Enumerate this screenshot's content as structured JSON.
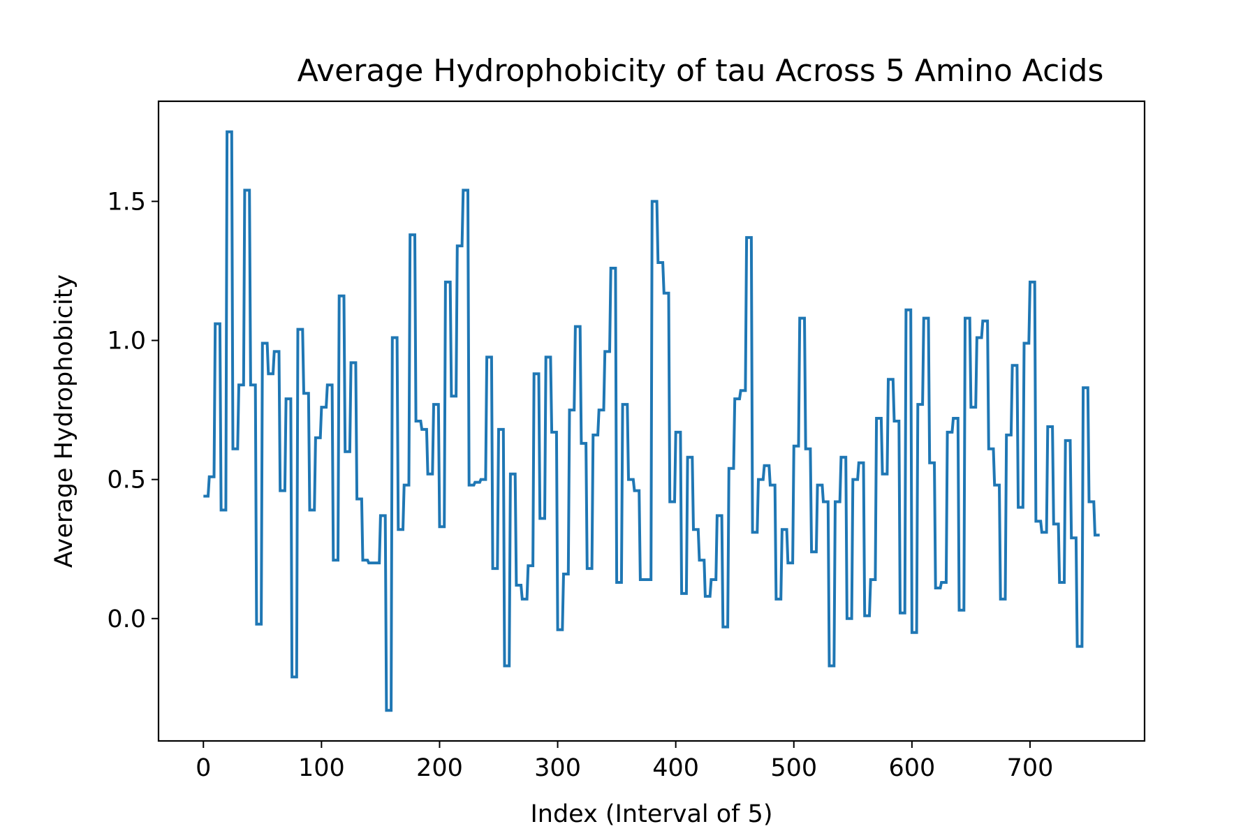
{
  "chart_data": {
    "type": "line",
    "title": "Average Hydrophobicity of tau Across 5 Amino Acids",
    "xlabel": "Index (Interval of 5)",
    "ylabel": "Average Hydrophobicity",
    "xlim": [
      -38,
      797
    ],
    "ylim": [
      -0.44,
      1.86
    ],
    "xticks": [
      0,
      100,
      200,
      300,
      400,
      500,
      600,
      700
    ],
    "xtick_labels": [
      "0",
      "100",
      "200",
      "300",
      "400",
      "500",
      "600",
      "700"
    ],
    "yticks": [
      0.0,
      0.5,
      1.0,
      1.5
    ],
    "ytick_labels": [
      "0.0",
      "0.5",
      "1.0",
      "1.5"
    ],
    "grid": false,
    "line_color": "#1f77b4",
    "series": [
      {
        "step": 5,
        "x": [
          0,
          5,
          10,
          15,
          20,
          25,
          30,
          35,
          40,
          45,
          50,
          55,
          60,
          65,
          70,
          75,
          80,
          85,
          90,
          95,
          100,
          105,
          110,
          115,
          120,
          125,
          130,
          135,
          140,
          145,
          150,
          155,
          160,
          165,
          170,
          175,
          180,
          185,
          190,
          195,
          200,
          205,
          210,
          215,
          220,
          225,
          230,
          235,
          240,
          245,
          250,
          255,
          260,
          265,
          270,
          275,
          280,
          285,
          290,
          295,
          300,
          305,
          310,
          315,
          320,
          325,
          330,
          335,
          340,
          345,
          350,
          355,
          360,
          365,
          370,
          375,
          380,
          385,
          390,
          395,
          400,
          405,
          410,
          415,
          420,
          425,
          430,
          435,
          440,
          445,
          450,
          455,
          460,
          465,
          470,
          475,
          480,
          485,
          490,
          495,
          500,
          505,
          510,
          515,
          520,
          525,
          530,
          535,
          540,
          545,
          550,
          555,
          560,
          565,
          570,
          575,
          580,
          585,
          590,
          595,
          600,
          605,
          610,
          615,
          620,
          625,
          630,
          635,
          640,
          645,
          650,
          655,
          660,
          665,
          670,
          675,
          680,
          685,
          690,
          695,
          700,
          705,
          710,
          715,
          720,
          725,
          730,
          735,
          740,
          745,
          750,
          755
        ],
        "values": [
          0.44,
          0.51,
          1.06,
          0.39,
          1.75,
          0.61,
          0.84,
          1.54,
          0.84,
          -0.02,
          0.99,
          0.88,
          0.96,
          0.46,
          0.79,
          -0.21,
          1.04,
          0.81,
          0.39,
          0.65,
          0.76,
          0.84,
          0.21,
          1.16,
          0.6,
          0.92,
          0.43,
          0.21,
          0.2,
          0.2,
          0.37,
          -0.33,
          1.01,
          0.32,
          0.48,
          1.38,
          0.71,
          0.68,
          0.52,
          0.77,
          0.33,
          1.21,
          0.8,
          1.34,
          1.54,
          0.48,
          0.49,
          0.5,
          0.94,
          0.18,
          0.68,
          -0.17,
          0.52,
          0.12,
          0.07,
          0.19,
          0.88,
          0.36,
          0.94,
          0.67,
          -0.04,
          0.16,
          0.75,
          1.05,
          0.63,
          0.18,
          0.66,
          0.75,
          0.96,
          1.26,
          0.13,
          0.77,
          0.5,
          0.46,
          0.14,
          0.14,
          1.5,
          1.28,
          1.17,
          0.42,
          0.67,
          0.09,
          0.58,
          0.32,
          0.21,
          0.08,
          0.14,
          0.37,
          -0.03,
          0.54,
          0.79,
          0.82,
          1.37,
          0.31,
          0.5,
          0.55,
          0.48,
          0.07,
          0.32,
          0.2,
          0.62,
          1.08,
          0.61,
          0.24,
          0.48,
          0.42,
          -0.17,
          0.42,
          0.58,
          0.0,
          0.5,
          0.56,
          0.01,
          0.14,
          0.72,
          0.52,
          0.86,
          0.71,
          0.02,
          1.11,
          -0.05,
          0.77,
          1.08,
          0.56,
          0.11,
          0.13,
          0.67,
          0.72,
          0.03,
          1.08,
          0.76,
          1.01,
          1.07,
          0.61,
          0.48,
          0.07,
          0.66,
          0.91,
          0.4,
          0.99,
          1.21,
          0.35,
          0.31,
          0.69,
          0.34,
          0.13,
          0.64,
          0.29,
          -0.1,
          0.83,
          0.42,
          0.3
        ]
      }
    ]
  }
}
